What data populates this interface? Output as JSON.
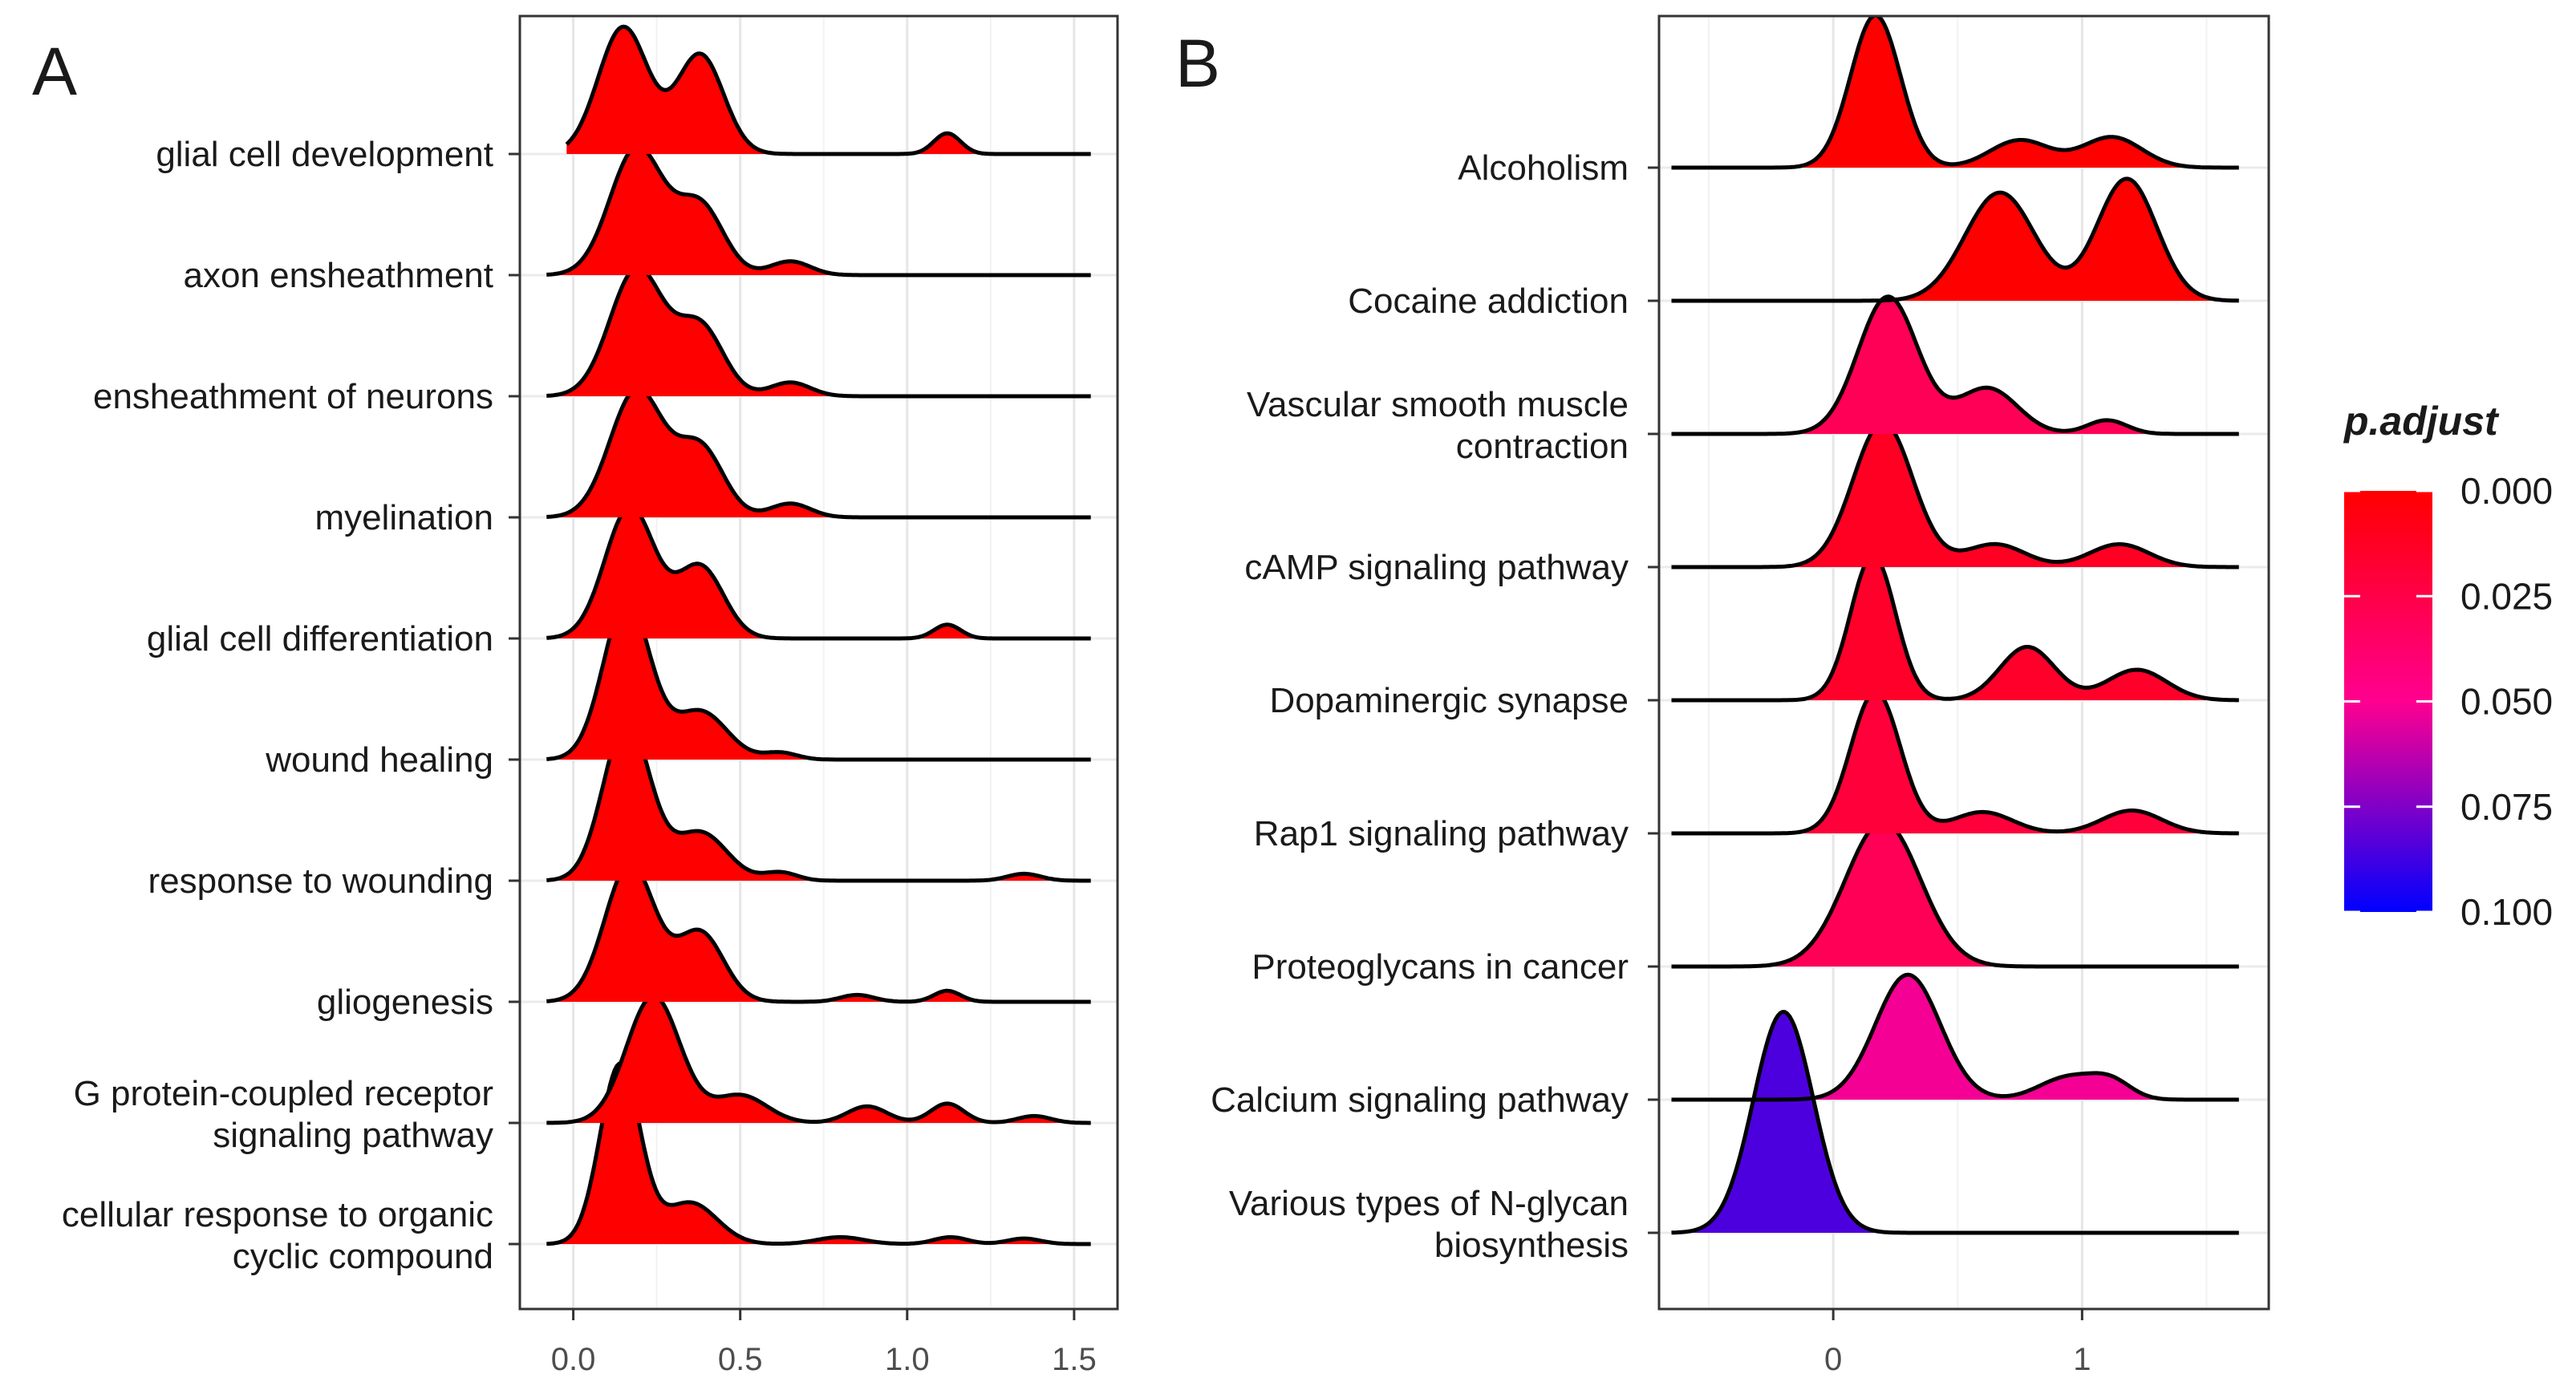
{
  "legend": {
    "title": "p.adjust",
    "ticks": [
      "0.000",
      "0.025",
      "0.050",
      "0.075",
      "0.100"
    ],
    "low_color": "#ff0000",
    "mid_color": "#ff0090",
    "high_color": "#0000ff",
    "range": [
      0.0,
      0.1
    ]
  },
  "chart_data": [
    {
      "type": "ridgeline",
      "panel": "A",
      "x_ticks": [
        0.0,
        0.5,
        1.0,
        1.5
      ],
      "x_tick_labels": [
        "0.0",
        "0.5",
        "1.0",
        "1.5"
      ],
      "xlim": [
        -0.16,
        1.63
      ],
      "grid": true,
      "categories": [
        {
          "lines": [
            "glial cell development"
          ],
          "p_adjust": 0.0,
          "range": [
            -0.02,
            1.55
          ],
          "peaks": [
            {
              "m": 0.15,
              "s": 0.075,
              "h": 0.92
            },
            {
              "m": 0.38,
              "s": 0.07,
              "h": 0.72
            },
            {
              "m": 1.12,
              "s": 0.04,
              "h": 0.15
            }
          ]
        },
        {
          "lines": [
            "axon ensheathment"
          ],
          "p_adjust": 0.0,
          "range": [
            -0.08,
            1.55
          ],
          "peaks": [
            {
              "m": 0.19,
              "s": 0.08,
              "h": 0.92
            },
            {
              "m": 0.38,
              "s": 0.07,
              "h": 0.5
            },
            {
              "m": 0.65,
              "s": 0.06,
              "h": 0.1
            }
          ]
        },
        {
          "lines": [
            "ensheathment of neurons"
          ],
          "p_adjust": 0.0,
          "range": [
            -0.08,
            1.55
          ],
          "peaks": [
            {
              "m": 0.19,
              "s": 0.08,
              "h": 0.92
            },
            {
              "m": 0.38,
              "s": 0.07,
              "h": 0.5
            },
            {
              "m": 0.65,
              "s": 0.06,
              "h": 0.1
            }
          ]
        },
        {
          "lines": [
            "myelination"
          ],
          "p_adjust": 0.0,
          "range": [
            -0.08,
            1.55
          ],
          "peaks": [
            {
              "m": 0.19,
              "s": 0.08,
              "h": 0.92
            },
            {
              "m": 0.38,
              "s": 0.07,
              "h": 0.5
            },
            {
              "m": 0.65,
              "s": 0.06,
              "h": 0.1
            }
          ]
        },
        {
          "lines": [
            "glial cell differentiation"
          ],
          "p_adjust": 0.0,
          "range": [
            -0.08,
            1.55
          ],
          "peaks": [
            {
              "m": 0.17,
              "s": 0.075,
              "h": 0.95
            },
            {
              "m": 0.38,
              "s": 0.07,
              "h": 0.52
            },
            {
              "m": 1.12,
              "s": 0.04,
              "h": 0.1
            }
          ]
        },
        {
          "lines": [
            "wound healing"
          ],
          "p_adjust": 0.0,
          "range": [
            -0.08,
            1.55
          ],
          "peaks": [
            {
              "m": 0.16,
              "s": 0.07,
              "h": 1.15
            },
            {
              "m": 0.38,
              "s": 0.08,
              "h": 0.35
            },
            {
              "m": 0.62,
              "s": 0.05,
              "h": 0.05
            }
          ]
        },
        {
          "lines": [
            "response to wounding"
          ],
          "p_adjust": 0.0,
          "range": [
            -0.08,
            1.55
          ],
          "peaks": [
            {
              "m": 0.16,
              "s": 0.07,
              "h": 1.15
            },
            {
              "m": 0.38,
              "s": 0.08,
              "h": 0.35
            },
            {
              "m": 0.62,
              "s": 0.05,
              "h": 0.06
            },
            {
              "m": 1.35,
              "s": 0.05,
              "h": 0.05
            }
          ]
        },
        {
          "lines": [
            "gliogenesis"
          ],
          "p_adjust": 0.0,
          "range": [
            -0.08,
            1.55
          ],
          "peaks": [
            {
              "m": 0.17,
              "s": 0.075,
              "h": 1.0
            },
            {
              "m": 0.38,
              "s": 0.07,
              "h": 0.5
            },
            {
              "m": 0.85,
              "s": 0.05,
              "h": 0.05
            },
            {
              "m": 1.12,
              "s": 0.04,
              "h": 0.08
            }
          ]
        },
        {
          "lines": [
            "G protein-coupled receptor",
            "signaling pathway"
          ],
          "p_adjust": 0.0,
          "range": [
            -0.08,
            1.55
          ],
          "peaks": [
            {
              "m": 0.24,
              "s": 0.08,
              "h": 0.92
            },
            {
              "m": 0.5,
              "s": 0.08,
              "h": 0.2
            },
            {
              "m": 0.88,
              "s": 0.06,
              "h": 0.12
            },
            {
              "m": 1.12,
              "s": 0.05,
              "h": 0.14
            },
            {
              "m": 1.38,
              "s": 0.05,
              "h": 0.05
            }
          ]
        },
        {
          "lines": [
            "cellular response to organic",
            "cyclic compound"
          ],
          "p_adjust": 0.0,
          "range": [
            -0.08,
            1.55
          ],
          "peaks": [
            {
              "m": 0.14,
              "s": 0.06,
              "h": 1.3
            },
            {
              "m": 0.35,
              "s": 0.08,
              "h": 0.3
            },
            {
              "m": 0.8,
              "s": 0.07,
              "h": 0.05
            },
            {
              "m": 1.13,
              "s": 0.05,
              "h": 0.05
            },
            {
              "m": 1.35,
              "s": 0.05,
              "h": 0.04
            }
          ]
        }
      ]
    },
    {
      "type": "ridgeline",
      "panel": "B",
      "x_ticks": [
        0,
        1
      ],
      "x_tick_labels": [
        "0",
        "1"
      ],
      "xlim": [
        -0.7,
        1.75
      ],
      "grid": true,
      "categories": [
        {
          "lines": [
            "Alcoholism"
          ],
          "p_adjust": 0.0,
          "range": [
            -0.65,
            1.63
          ],
          "peaks": [
            {
              "m": 0.17,
              "s": 0.1,
              "h": 1.0
            },
            {
              "m": 0.75,
              "s": 0.12,
              "h": 0.18
            },
            {
              "m": 1.12,
              "s": 0.12,
              "h": 0.2
            }
          ]
        },
        {
          "lines": [
            "Cocaine addiction"
          ],
          "p_adjust": 0.0,
          "range": [
            -0.65,
            1.63
          ],
          "peaks": [
            {
              "m": 0.67,
              "s": 0.14,
              "h": 0.71
            },
            {
              "m": 1.18,
              "s": 0.12,
              "h": 0.8
            }
          ]
        },
        {
          "lines": [
            "Vascular smooth muscle",
            "contraction"
          ],
          "p_adjust": 0.03,
          "range": [
            -0.65,
            1.63
          ],
          "peaks": [
            {
              "m": 0.22,
              "s": 0.12,
              "h": 0.9
            },
            {
              "m": 0.62,
              "s": 0.12,
              "h": 0.3
            },
            {
              "m": 1.1,
              "s": 0.08,
              "h": 0.09
            }
          ]
        },
        {
          "lines": [
            "cAMP signaling pathway"
          ],
          "p_adjust": 0.012,
          "range": [
            -0.65,
            1.63
          ],
          "peaks": [
            {
              "m": 0.2,
              "s": 0.12,
              "h": 0.95
            },
            {
              "m": 0.65,
              "s": 0.12,
              "h": 0.15
            },
            {
              "m": 1.15,
              "s": 0.12,
              "h": 0.15
            }
          ]
        },
        {
          "lines": [
            "Dopaminergic synapse"
          ],
          "p_adjust": 0.015,
          "range": [
            -0.65,
            1.63
          ],
          "peaks": [
            {
              "m": 0.16,
              "s": 0.09,
              "h": 0.95
            },
            {
              "m": 0.78,
              "s": 0.11,
              "h": 0.35
            },
            {
              "m": 1.22,
              "s": 0.12,
              "h": 0.2
            }
          ]
        },
        {
          "lines": [
            "Rap1 signaling pathway"
          ],
          "p_adjust": 0.02,
          "range": [
            -0.65,
            1.63
          ],
          "peaks": [
            {
              "m": 0.17,
              "s": 0.1,
              "h": 0.93
            },
            {
              "m": 0.6,
              "s": 0.12,
              "h": 0.14
            },
            {
              "m": 1.2,
              "s": 0.12,
              "h": 0.15
            }
          ]
        },
        {
          "lines": [
            "Proteoglycans in cancer"
          ],
          "p_adjust": 0.03,
          "range": [
            -0.65,
            1.63
          ],
          "peaks": [
            {
              "m": 0.2,
              "s": 0.15,
              "h": 0.95
            }
          ]
        },
        {
          "lines": [
            "Calcium signaling pathway"
          ],
          "p_adjust": 0.052,
          "range": [
            -0.65,
            1.63
          ],
          "peaks": [
            {
              "m": 0.3,
              "s": 0.13,
              "h": 0.82
            },
            {
              "m": 0.95,
              "s": 0.12,
              "h": 0.15
            },
            {
              "m": 1.12,
              "s": 0.08,
              "h": 0.1
            }
          ]
        },
        {
          "lines": [
            "Various types of N-glycan",
            "biosynthesis"
          ],
          "p_adjust": 0.085,
          "range": [
            -0.65,
            1.63
          ],
          "peaks": [
            {
              "m": -0.2,
              "s": 0.12,
              "h": 1.45
            }
          ]
        }
      ]
    }
  ],
  "panels": {
    "a": {
      "letter": "A"
    },
    "b": {
      "letter": "B"
    }
  }
}
